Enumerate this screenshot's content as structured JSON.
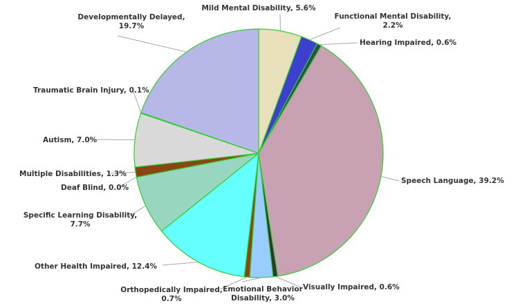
{
  "chart_data": {
    "type": "pie",
    "title": "",
    "start_angle_deg": 0,
    "direction": "clockwise",
    "series": [
      {
        "values": [
          5.6,
          2.2,
          0.6,
          39.2,
          0.6,
          3.0,
          0.7,
          12.4,
          7.7,
          0.0,
          1.3,
          7.0,
          0.1,
          19.7
        ],
        "categories": [
          "Mild Mental Disability",
          "Functional Mental Disability",
          "Hearing Impaired",
          "Speech Language",
          "Visually Impaired",
          "Emotional Behavior Disability",
          "Orthopedically Impaired",
          "Other Health Impaired",
          "Specific Learning Disability",
          "Deaf Blind",
          "Multiple Disabilities",
          "Autism",
          "Traumatic Brain Injury",
          "Developmentally Delayed"
        ],
        "colors": [
          "#e8dfbb",
          "#3d3fcf",
          "#2f4f4f",
          "#c8a2b2",
          "#333333",
          "#99ccff",
          "#8b4513",
          "#66ffff",
          "#99d6c0",
          "#ffff00",
          "#8b4513",
          "#d9d9d9",
          "#1a3d1a",
          "#b8b8e8"
        ],
        "slice_border_color": "#33cc33"
      }
    ],
    "labels": [
      {
        "lines": [
          "Mild Mental Disability, 5.6%"
        ]
      },
      {
        "lines": [
          "Functional Mental Disability,",
          "2.2%"
        ]
      },
      {
        "lines": [
          "Hearing Impaired, 0.6%"
        ]
      },
      {
        "lines": [
          "Speech Language, 39.2%"
        ]
      },
      {
        "lines": [
          "Visually Impaired, 0.6%"
        ]
      },
      {
        "lines": [
          "Emotional Behavior",
          "Disability, 3.0%"
        ]
      },
      {
        "lines": [
          "Orthopedically Impaired,",
          "0.7%"
        ]
      },
      {
        "lines": [
          "Other Health Impaired, 12.4%"
        ]
      },
      {
        "lines": [
          "Specific Learning Disability,",
          "7.7%"
        ]
      },
      {
        "lines": [
          "Deaf Blind, 0.0%"
        ]
      },
      {
        "lines": [
          "Multiple Disabilities, 1.3%"
        ]
      },
      {
        "lines": [
          "Autism, 7.0%"
        ]
      },
      {
        "lines": [
          "Traumatic Brain Injury, 0.1%"
        ]
      },
      {
        "lines": [
          "Developmentally Delayed,",
          "19.7%"
        ]
      }
    ],
    "legend": "none"
  }
}
